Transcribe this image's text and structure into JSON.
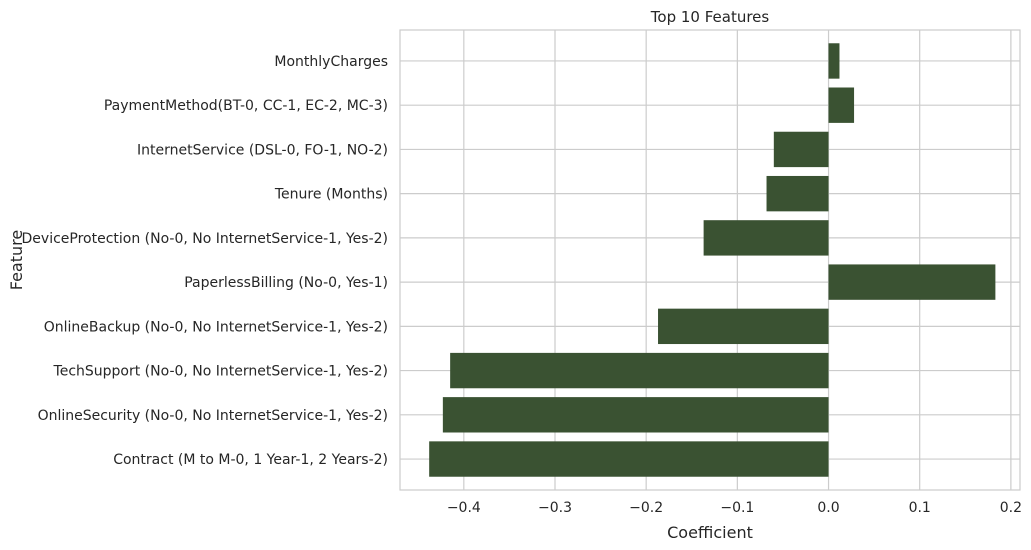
{
  "chart_data": {
    "type": "bar",
    "orientation": "horizontal",
    "title": "Top 10 Features",
    "xlabel": "Coefficient",
    "ylabel": "Feature",
    "xlim": [
      -0.47,
      0.21
    ],
    "xticks": [
      -0.4,
      -0.3,
      -0.2,
      -0.1,
      0.0,
      0.1,
      0.2
    ],
    "xtick_labels": [
      "−0.4",
      "−0.3",
      "−0.2",
      "−0.1",
      "0.0",
      "0.1",
      "0.2"
    ],
    "grid": true,
    "bar_color": "#3a5232",
    "categories": [
      "MonthlyCharges",
      "PaymentMethod(BT-0, CC-1, EC-2, MC-3)",
      "InternetService (DSL-0, FO-1, NO-2)",
      "Tenure (Months)",
      "DeviceProtection (No-0, No InternetService-1, Yes-2)",
      "PaperlessBilling (No-0, Yes-1)",
      "OnlineBackup (No-0, No InternetService-1, Yes-2)",
      "TechSupport (No-0, No InternetService-1, Yes-2)",
      "OnlineSecurity (No-0, No InternetService-1, Yes-2)",
      "Contract (M to M-0, 1 Year-1, 2 Years-2)"
    ],
    "values": [
      0.012,
      0.028,
      -0.06,
      -0.068,
      -0.137,
      0.183,
      -0.187,
      -0.415,
      -0.423,
      -0.438
    ]
  }
}
